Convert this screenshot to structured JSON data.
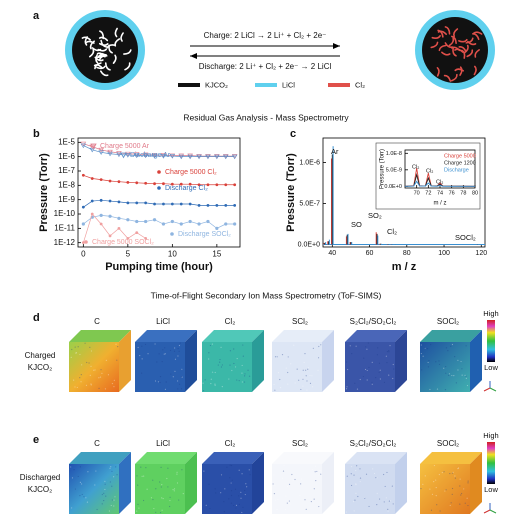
{
  "panel_a": {
    "label": "a",
    "charge": "Charge: 2 LiCl → 2 Li⁺ + Cl₂ + 2e⁻",
    "discharge": "Discharge: 2 Li⁺ + Cl₂ + 2e⁻ → 2 LiCl",
    "legend": [
      {
        "name": "KJCO₂",
        "color": "#111111"
      },
      {
        "name": "LiCl",
        "color": "#5fd0ee"
      },
      {
        "name": "Cl₂",
        "color": "#e0504a"
      }
    ]
  },
  "ms_title": "Residual Gas Analysis - Mass Spectrometry",
  "chart_data": [
    {
      "type": "line",
      "label": "b",
      "xlabel": "Pumping time (hour)",
      "ylabel": "Pressure (Torr)",
      "ylog": true,
      "x": [
        0,
        1,
        2,
        3,
        4,
        5,
        6,
        7,
        8,
        9,
        10,
        11,
        12,
        13,
        14,
        15,
        16,
        17
      ],
      "xlim": [
        -0.6,
        17.6
      ],
      "xticks": [
        0,
        5,
        10,
        15
      ],
      "ylim": [
        5e-13,
        2e-05
      ],
      "yticks": [
        {
          "value": 1e-05,
          "label": "1E-5"
        },
        {
          "value": 1e-06,
          "label": "1E-6"
        },
        {
          "value": 1e-07,
          "label": "1E-7"
        },
        {
          "value": 1e-08,
          "label": "1E-8"
        },
        {
          "value": 1e-09,
          "label": "1E-9"
        },
        {
          "value": 1e-10,
          "label": "1E-10"
        },
        {
          "value": 1e-11,
          "label": "1E-11"
        },
        {
          "value": 1e-12,
          "label": "1E-12"
        }
      ],
      "series": [
        {
          "name": "Charge 5000 Ar",
          "color": "#e07a8a",
          "marker": "triangle",
          "values": [
            8e-06,
            5e-06,
            3e-06,
            2.2e-06,
            1.8e-06,
            1.6e-06,
            1.5e-06,
            1.4e-06,
            1.3e-06,
            1.3e-06,
            1.2e-06,
            1.2e-06,
            1.2e-06,
            1.1e-06,
            1.1e-06,
            1.1e-06,
            1.1e-06,
            1.1e-06
          ]
        },
        {
          "name": "Discharge Ar",
          "color": "#5b8fc9",
          "marker": "triangle",
          "values": [
            6e-06,
            3e-06,
            2e-06,
            1.6e-06,
            1.4e-06,
            1.3e-06,
            1.2e-06,
            1.2e-06,
            1.1e-06,
            1.1e-06,
            1.1e-06,
            1e-06,
            1e-06,
            1e-06,
            1e-06,
            1e-06,
            1e-06,
            1e-06
          ]
        },
        {
          "name": "Charge 5000 Cl₂",
          "color": "#d9413a",
          "marker": "circle",
          "values": [
            5e-08,
            3e-08,
            2.5e-08,
            2e-08,
            1.8e-08,
            1.6e-08,
            1.5e-08,
            1.4e-08,
            1.3e-08,
            1.3e-08,
            1.2e-08,
            1.2e-08,
            1.2e-08,
            1.1e-08,
            1.1e-08,
            1.1e-08,
            1.1e-08,
            1.1e-08
          ]
        },
        {
          "name": "Discharge Cl₂",
          "color": "#2f6bb5",
          "marker": "circle",
          "values": [
            3e-10,
            8e-10,
            9e-10,
            8e-10,
            7e-10,
            6e-10,
            6e-10,
            6e-10,
            5e-10,
            5e-10,
            5e-10,
            5e-10,
            5e-10,
            4e-10,
            4e-10,
            4e-10,
            4e-10,
            4e-10
          ]
        },
        {
          "name": "Discharge SOCl₂",
          "color": "#8fb5e0",
          "marker": "star",
          "values": [
            2e-11,
            6e-11,
            8e-11,
            7e-11,
            5e-11,
            4e-11,
            3e-11,
            3e-11,
            4e-11,
            2e-11,
            3e-11,
            2e-11,
            3e-11,
            2e-11,
            3e-11,
            1e-11,
            2e-11,
            2e-11
          ]
        },
        {
          "name": "Charge 5000 SOCl₂",
          "color": "#f0a0a0",
          "marker": "circle",
          "values": [
            1e-12,
            1e-10,
            2e-11,
            3e-12,
            1e-11,
            2e-12,
            5e-12,
            2e-12,
            null,
            null,
            null,
            null,
            null,
            null,
            null,
            null,
            null,
            null
          ]
        }
      ]
    },
    {
      "type": "stem",
      "label": "c",
      "xlabel": "m / z",
      "ylabel": "Pressure (Torr)",
      "x": [
        36,
        38,
        40,
        48,
        50,
        64,
        66,
        70,
        72,
        74,
        118
      ],
      "xlim": [
        35,
        122
      ],
      "xticks": [
        40,
        60,
        80,
        100,
        120
      ],
      "ylim": [
        -3e-08,
        1.3e-06
      ],
      "yticks": [
        {
          "value": 0,
          "label": "0.0E+0"
        },
        {
          "value": 5e-07,
          "label": "5.0E-7"
        },
        {
          "value": 1e-06,
          "label": "1.0E-6"
        }
      ],
      "annotations": [
        "Ar",
        "SO",
        "SO₂",
        "Cl₂",
        "SOCl₂"
      ],
      "series": [
        {
          "color": "#d9413a",
          "values": [
            2e-08,
            4e-08,
            1.05e-06,
            1e-07,
            3e-08,
            1.5e-07,
            1e-08,
            5e-09,
            3.5e-09,
            8e-10,
            2e-09
          ]
        },
        {
          "color": "#222222",
          "values": [
            2e-08,
            4e-08,
            1.1e-06,
            1.2e-07,
            3e-08,
            1.3e-07,
            1e-08,
            3e-09,
            2e-09,
            5e-10,
            2e-09
          ]
        },
        {
          "color": "#3a8fd0",
          "values": [
            3e-08,
            6e-08,
            1.2e-06,
            1.3e-07,
            3e-08,
            1.1e-07,
            8e-09,
            1.5e-09,
            1e-09,
            3e-10,
            3e-09
          ]
        }
      ]
    },
    {
      "type": "line",
      "xlabel": "m / z",
      "ylabel": "Pressure (Torr)",
      "x": [
        68,
        69.5,
        70,
        70.5,
        71.5,
        72,
        72.5,
        73.5,
        74,
        74.5,
        80
      ],
      "xlim": [
        68,
        80
      ],
      "xticks": [
        70,
        72,
        74,
        76,
        78,
        80
      ],
      "ylim": [
        -5e-10,
        1.1e-08
      ],
      "yticks": [
        {
          "value": 0,
          "label": "0.0E+0"
        },
        {
          "value": 5e-09,
          "label": "5.0E-9"
        },
        {
          "value": 1e-08,
          "label": "1.0E-8"
        }
      ],
      "annotations": [
        "Cl₂",
        "Cl₂",
        "Cl₂"
      ],
      "series": [
        {
          "name": "Charge 5000",
          "color": "#d9413a",
          "values": [
            0,
            2e-10,
            5.5e-09,
            2e-10,
            1e-10,
            4e-09,
            1e-10,
            1e-10,
            1e-09,
            1e-10,
            0
          ]
        },
        {
          "name": "Charge 1200",
          "color": "#222222",
          "values": [
            0,
            1e-10,
            3.5e-09,
            1e-10,
            1e-10,
            2.5e-09,
            1e-10,
            1e-10,
            6e-10,
            1e-10,
            0
          ]
        },
        {
          "name": "Discharge",
          "color": "#3a8fd0",
          "values": [
            0,
            1e-10,
            1.5e-09,
            1e-10,
            1e-10,
            1e-09,
            1e-10,
            0,
            3e-10,
            0,
            0
          ]
        }
      ]
    }
  ],
  "tof_sims": {
    "title": "Time-of-Flight Secondary Ion Mass Spectrometry (ToF-SIMS)",
    "colorbar": {
      "high": "High",
      "low": "Low"
    },
    "rows": [
      {
        "label": "d",
        "sample": [
          "Charged",
          "KJCO₂"
        ],
        "columns": [
          "C",
          "LiCl",
          "Cl₂",
          "SCl₂",
          "S₂Cl₂/SO₂Cl₂",
          "SOCl₂"
        ]
      },
      {
        "label": "e",
        "sample": [
          "Discharged",
          "KJCO₂"
        ],
        "columns": [
          "C",
          "LiCl",
          "Cl₂",
          "SCl₂",
          "S₂Cl₂/SO₂Cl₂",
          "SOCl₂"
        ]
      }
    ]
  }
}
